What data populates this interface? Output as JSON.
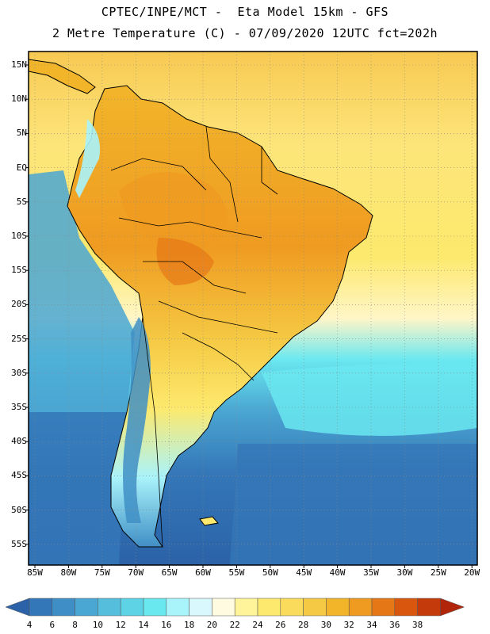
{
  "header": {
    "line1": "CPTEC/INPE/MCT -  Eta Model 15km - GFS",
    "line2": "2 Metre Temperature (C) - 07/09/2020 12UTC fct=202h"
  },
  "axes": {
    "lat_labels": [
      "15N",
      "10N",
      "5N",
      "EQ",
      "5S",
      "10S",
      "15S",
      "20S",
      "25S",
      "30S",
      "35S",
      "40S",
      "45S",
      "50S",
      "55S"
    ],
    "lon_labels": [
      "85W",
      "80W",
      "75W",
      "70W",
      "65W",
      "60W",
      "55W",
      "50W",
      "45W",
      "40W",
      "35W",
      "30W",
      "25W",
      "20W"
    ]
  },
  "colorbar": {
    "labels": [
      "4",
      "6",
      "8",
      "10",
      "12",
      "14",
      "16",
      "18",
      "20",
      "22",
      "24",
      "26",
      "28",
      "30",
      "32",
      "34",
      "36",
      "38"
    ],
    "colors": [
      "#2b62a8",
      "#3477b8",
      "#3f8fc6",
      "#4aa6d2",
      "#55bedd",
      "#5fd3e6",
      "#6ae8f0",
      "#a9f3fb",
      "#d8f8fd",
      "#fffbe0",
      "#fff49a",
      "#fde96d",
      "#fadb5c",
      "#f5c943",
      "#f2b52a",
      "#ef9b21",
      "#e67717",
      "#d9560f",
      "#c43a0a",
      "#b1260a"
    ]
  },
  "map_colors": {
    "ocean_warm": "#fde96d",
    "ocean_cool": "#55bedd",
    "ocean_cold": "#2b62a8",
    "land_hot": "#f2b52a",
    "land_very_hot": "#e67717",
    "andes_cold": "#3f8fc6"
  }
}
